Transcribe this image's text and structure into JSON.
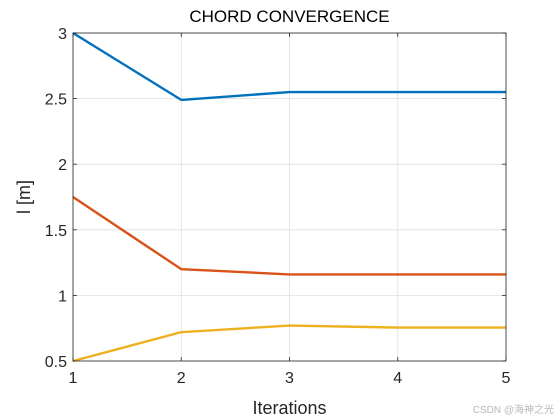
{
  "chart_data": {
    "type": "line",
    "title": "CHORD CONVERGENCE",
    "xlabel": "Iterations",
    "ylabel": "l [m]",
    "x": [
      1,
      2,
      3,
      4,
      5
    ],
    "xlim": [
      1,
      5
    ],
    "ylim": [
      0.5,
      3
    ],
    "xticks": [
      1,
      2,
      3,
      4,
      5
    ],
    "yticks": [
      0.5,
      1,
      1.5,
      2,
      2.5,
      3
    ],
    "ytick_labels": [
      "0.5",
      "1",
      "1.5",
      "2",
      "2.5",
      "3"
    ],
    "grid": true,
    "series": [
      {
        "values": [
          3.0,
          2.49,
          2.55,
          2.55,
          2.55
        ],
        "color": "#0072BD"
      },
      {
        "values": [
          1.75,
          1.2,
          1.16,
          1.16,
          1.16
        ],
        "color": "#D95319"
      },
      {
        "values": [
          0.5,
          0.72,
          0.77,
          0.755,
          0.755
        ],
        "color": "#EDB120"
      }
    ]
  },
  "watermark": "CSDN @海神之光"
}
